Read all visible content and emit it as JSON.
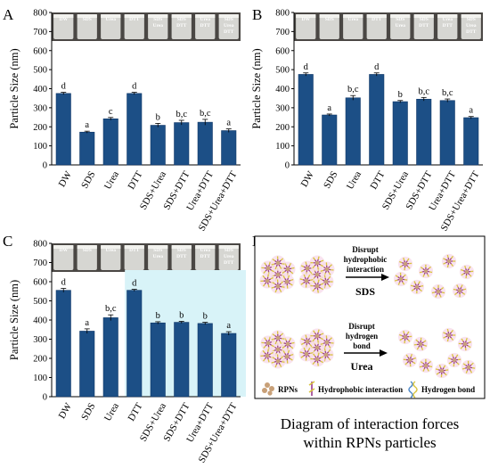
{
  "chart_data": [
    {
      "panel": "A",
      "type": "bar",
      "ylabel": "Particle Size (nm)",
      "ylim": [
        0,
        800
      ],
      "yticks": [
        0,
        100,
        200,
        300,
        400,
        500,
        600,
        700,
        800
      ],
      "categories": [
        "DW",
        "SDS",
        "Urea",
        "DTT",
        "SDS+Urea",
        "SDS+DTT",
        "Urea+DTT",
        "SDS+Urea+DTT"
      ],
      "values": [
        375,
        172,
        242,
        375,
        208,
        222,
        224,
        180
      ],
      "errors": [
        6,
        5,
        7,
        6,
        10,
        12,
        15,
        9
      ],
      "letters": [
        "d",
        "a",
        "c",
        "d",
        "b",
        "b,c",
        "b,c",
        "a"
      ],
      "photo_labels": [
        "DW",
        "SDS",
        "Urea",
        "DTT",
        "SDS\nUrea",
        "SDS\nDTT",
        "Urea\nDTT",
        "SDS\nUrea\nDTT"
      ]
    },
    {
      "panel": "B",
      "type": "bar",
      "ylabel": "Particle Size (nm)",
      "ylim": [
        0,
        800
      ],
      "yticks": [
        0,
        100,
        200,
        300,
        400,
        500,
        600,
        700,
        800
      ],
      "categories": [
        "DW",
        "SDS",
        "Urea",
        "DTT",
        "SDS+Urea",
        "SDS+DTT",
        "Urea+DTT",
        "SDS+Urea+DTT"
      ],
      "values": [
        475,
        262,
        352,
        475,
        332,
        345,
        338,
        248
      ],
      "errors": [
        8,
        5,
        12,
        8,
        6,
        9,
        8,
        6
      ],
      "letters": [
        "d",
        "a",
        "b,c",
        "d",
        "b",
        "b,c",
        "b,c",
        "a"
      ],
      "photo_labels": [
        "DW",
        "SDS",
        "Urea",
        "DTT",
        "SDS\nUrea",
        "SDS\nDTT",
        "Urea\nDTT",
        "SDS\nUrea\nDTT"
      ]
    },
    {
      "panel": "C",
      "type": "bar",
      "ylabel": "Particle Size (nm)",
      "ylim": [
        0,
        800
      ],
      "yticks": [
        0,
        100,
        200,
        300,
        400,
        500,
        600,
        700,
        800
      ],
      "categories": [
        "DW",
        "SDS",
        "Urea",
        "DTT",
        "SDS+Urea",
        "SDS+DTT",
        "Urea+DTT",
        "SDS+Urea+DTT"
      ],
      "values": [
        555,
        342,
        412,
        555,
        385,
        388,
        382,
        330
      ],
      "errors": [
        10,
        12,
        15,
        5,
        6,
        5,
        6,
        9
      ],
      "letters": [
        "d",
        "a",
        "b,c",
        "d",
        "b",
        "b",
        "b",
        "a"
      ],
      "photo_labels": [
        "DW",
        "SDS",
        "Urea",
        "DTT",
        "SDS\nUrea",
        "SDS\nDTT",
        "Urea\nDTT",
        "SDS\nUrea\nDTT"
      ]
    }
  ],
  "diagram": {
    "panel": "D",
    "top_arrow_text": [
      "Disrupt",
      "hydrophobic",
      "interaction"
    ],
    "top_agent": "SDS",
    "bottom_arrow_text": [
      "Disrupt",
      "hydrogen",
      "bond"
    ],
    "bottom_agent": "Urea",
    "legend": [
      "RPNs",
      "Hydrophobic interaction",
      "Hydrogen bond"
    ],
    "caption_line1": "Diagram of interaction forces",
    "caption_line2": "within RPNs particles"
  },
  "colors": {
    "bar": "#1c4f86",
    "bar_edge": "#0d3566",
    "highlight": "#d8f3f8",
    "axis": "#000000",
    "photo_bg": "#4a4744",
    "petal_yellow": "#d8c43c",
    "petal_purple": "#9a3a8e",
    "core": "#c8a078",
    "halo": "#f7dceb"
  }
}
